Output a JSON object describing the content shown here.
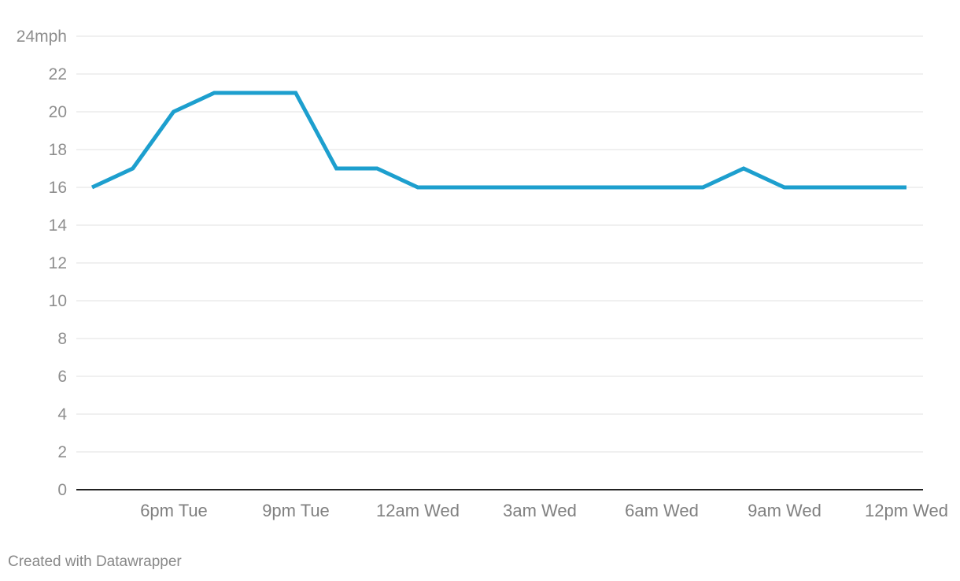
{
  "chart_data": {
    "type": "line",
    "title": "",
    "xlabel": "",
    "ylabel": "",
    "y_unit_label": "mph",
    "ylim": [
      0,
      24
    ],
    "y_ticks": [
      0,
      2,
      4,
      6,
      8,
      10,
      12,
      14,
      16,
      18,
      20,
      22,
      24
    ],
    "y_tick_labels": [
      "0",
      "2",
      "4",
      "6",
      "8",
      "10",
      "12",
      "14",
      "16",
      "18",
      "20",
      "22",
      "24mph"
    ],
    "x_tick_labels": [
      "6pm Tue",
      "9pm Tue",
      "12am Wed",
      "3am Wed",
      "6am Wed",
      "9am Wed",
      "12pm Wed"
    ],
    "grid": true,
    "series": [
      {
        "color": "#1d9fce",
        "values": [
          16,
          17,
          20,
          21,
          21,
          21,
          17,
          17,
          16,
          16,
          16,
          16,
          16,
          16,
          16,
          16,
          17,
          16,
          16,
          16,
          16
        ]
      }
    ]
  },
  "footer": {
    "credit": "Created with Datawrapper"
  }
}
